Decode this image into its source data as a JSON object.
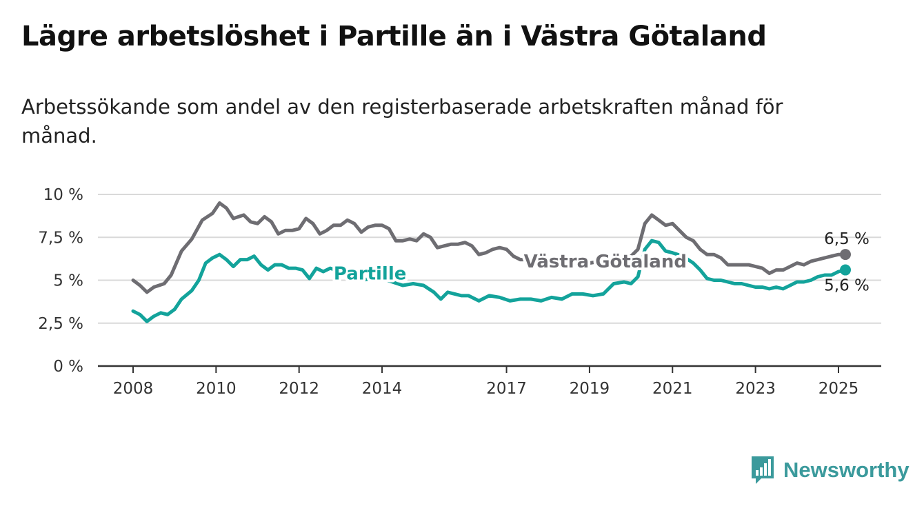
{
  "header": {
    "title": "Lägre arbetslöshet i Partille än i Västra Götaland",
    "subtitle": "Arbetssökande som andel av den registerbaserade arbetskraften månad för månad."
  },
  "brand": {
    "name": "Newsworthy",
    "icon": "newsworthy-logo-icon",
    "color": "#3b9a9c"
  },
  "chart_data": {
    "type": "line",
    "title": "Lägre arbetslöshet i Partille än i Västra Götaland",
    "subtitle": "Arbetssökande som andel av den registerbaserade arbetskraften månad för månad.",
    "xlabel": "",
    "ylabel": "",
    "x_ticks": [
      "2008",
      "2010",
      "2012",
      "2014",
      "2017",
      "2019",
      "2021",
      "2023",
      "2025"
    ],
    "y_ticks": [
      "0 %",
      "2,5 %",
      "5 %",
      "7,5 %",
      "10 %"
    ],
    "xlim": [
      "2008-01",
      "2025-03"
    ],
    "ylim": [
      0,
      10
    ],
    "grid": "horizontal",
    "legend": "inline labels",
    "series": [
      {
        "name": "Västra Götaland",
        "color": "#6e6d72",
        "end_label": "6,5 %",
        "points": [
          [
            "2008-01",
            5.0
          ],
          [
            "2008-03",
            4.7
          ],
          [
            "2008-05",
            4.3
          ],
          [
            "2008-07",
            4.6
          ],
          [
            "2008-10",
            4.8
          ],
          [
            "2008-12",
            5.3
          ],
          [
            "2009-03",
            6.7
          ],
          [
            "2009-06",
            7.4
          ],
          [
            "2009-09",
            8.5
          ],
          [
            "2009-12",
            8.9
          ],
          [
            "2010-02",
            9.5
          ],
          [
            "2010-04",
            9.2
          ],
          [
            "2010-06",
            8.6
          ],
          [
            "2010-09",
            8.8
          ],
          [
            "2010-11",
            8.4
          ],
          [
            "2011-01",
            8.3
          ],
          [
            "2011-03",
            8.7
          ],
          [
            "2011-05",
            8.4
          ],
          [
            "2011-07",
            7.7
          ],
          [
            "2011-09",
            7.9
          ],
          [
            "2011-11",
            7.9
          ],
          [
            "2012-01",
            8.0
          ],
          [
            "2012-03",
            8.6
          ],
          [
            "2012-05",
            8.3
          ],
          [
            "2012-07",
            7.7
          ],
          [
            "2012-09",
            7.9
          ],
          [
            "2012-11",
            8.2
          ],
          [
            "2013-01",
            8.2
          ],
          [
            "2013-03",
            8.5
          ],
          [
            "2013-05",
            8.3
          ],
          [
            "2013-07",
            7.8
          ],
          [
            "2013-09",
            8.1
          ],
          [
            "2013-11",
            8.2
          ],
          [
            "2014-01",
            8.2
          ],
          [
            "2014-03",
            8.0
          ],
          [
            "2014-05",
            7.3
          ],
          [
            "2014-07",
            7.3
          ],
          [
            "2014-09",
            7.4
          ],
          [
            "2014-11",
            7.3
          ],
          [
            "2015-01",
            7.7
          ],
          [
            "2015-03",
            7.5
          ],
          [
            "2015-05",
            6.9
          ],
          [
            "2015-07",
            7.0
          ],
          [
            "2015-09",
            7.1
          ],
          [
            "2015-11",
            7.1
          ],
          [
            "2016-01",
            7.2
          ],
          [
            "2016-03",
            7.0
          ],
          [
            "2016-05",
            6.5
          ],
          [
            "2016-07",
            6.6
          ],
          [
            "2016-09",
            6.8
          ],
          [
            "2016-11",
            6.9
          ],
          [
            "2017-01",
            6.8
          ],
          [
            "2017-03",
            6.4
          ],
          [
            "2017-05",
            6.2
          ],
          [
            "2017-07",
            6.2
          ],
          [
            "2017-09",
            6.1
          ],
          [
            "2017-11",
            6.0
          ],
          [
            "2018-01",
            6.0
          ],
          [
            "2018-04",
            5.9
          ],
          [
            "2018-07",
            5.9
          ],
          [
            "2018-10",
            6.0
          ],
          [
            "2019-01",
            6.0
          ],
          [
            "2019-04",
            6.1
          ],
          [
            "2019-07",
            6.2
          ],
          [
            "2019-10",
            6.3
          ],
          [
            "2020-01",
            6.4
          ],
          [
            "2020-03",
            6.8
          ],
          [
            "2020-05",
            8.3
          ],
          [
            "2020-07",
            8.8
          ],
          [
            "2020-09",
            8.5
          ],
          [
            "2020-11",
            8.2
          ],
          [
            "2021-01",
            8.3
          ],
          [
            "2021-03",
            7.9
          ],
          [
            "2021-05",
            7.5
          ],
          [
            "2021-07",
            7.3
          ],
          [
            "2021-09",
            6.8
          ],
          [
            "2021-11",
            6.5
          ],
          [
            "2022-01",
            6.5
          ],
          [
            "2022-03",
            6.3
          ],
          [
            "2022-05",
            5.9
          ],
          [
            "2022-07",
            5.9
          ],
          [
            "2022-09",
            5.9
          ],
          [
            "2022-11",
            5.9
          ],
          [
            "2023-01",
            5.8
          ],
          [
            "2023-03",
            5.7
          ],
          [
            "2023-05",
            5.4
          ],
          [
            "2023-07",
            5.6
          ],
          [
            "2023-09",
            5.6
          ],
          [
            "2023-11",
            5.8
          ],
          [
            "2024-01",
            6.0
          ],
          [
            "2024-03",
            5.9
          ],
          [
            "2024-05",
            6.1
          ],
          [
            "2024-07",
            6.2
          ],
          [
            "2024-09",
            6.3
          ],
          [
            "2024-11",
            6.4
          ],
          [
            "2025-01",
            6.5
          ],
          [
            "2025-03",
            6.5
          ]
        ]
      },
      {
        "name": "Partille",
        "color": "#13a39b",
        "end_label": "5,6 %",
        "points": [
          [
            "2008-01",
            3.2
          ],
          [
            "2008-03",
            3.0
          ],
          [
            "2008-05",
            2.6
          ],
          [
            "2008-07",
            2.9
          ],
          [
            "2008-09",
            3.1
          ],
          [
            "2008-11",
            3.0
          ],
          [
            "2009-01",
            3.3
          ],
          [
            "2009-03",
            3.9
          ],
          [
            "2009-06",
            4.4
          ],
          [
            "2009-08",
            5.0
          ],
          [
            "2009-10",
            6.0
          ],
          [
            "2009-12",
            6.3
          ],
          [
            "2010-02",
            6.5
          ],
          [
            "2010-04",
            6.2
          ],
          [
            "2010-06",
            5.8
          ],
          [
            "2010-08",
            6.2
          ],
          [
            "2010-10",
            6.2
          ],
          [
            "2010-12",
            6.4
          ],
          [
            "2011-02",
            5.9
          ],
          [
            "2011-04",
            5.6
          ],
          [
            "2011-06",
            5.9
          ],
          [
            "2011-08",
            5.9
          ],
          [
            "2011-10",
            5.7
          ],
          [
            "2011-12",
            5.7
          ],
          [
            "2012-02",
            5.6
          ],
          [
            "2012-04",
            5.1
          ],
          [
            "2012-06",
            5.7
          ],
          [
            "2012-08",
            5.5
          ],
          [
            "2012-10",
            5.7
          ],
          [
            "2013-01",
            5.5
          ],
          [
            "2013-04",
            5.3
          ],
          [
            "2013-07",
            5.0
          ],
          [
            "2013-10",
            5.1
          ],
          [
            "2014-01",
            5.1
          ],
          [
            "2014-04",
            4.9
          ],
          [
            "2014-07",
            4.7
          ],
          [
            "2014-10",
            4.8
          ],
          [
            "2015-01",
            4.7
          ],
          [
            "2015-04",
            4.3
          ],
          [
            "2015-06",
            3.9
          ],
          [
            "2015-08",
            4.3
          ],
          [
            "2015-10",
            4.2
          ],
          [
            "2015-12",
            4.1
          ],
          [
            "2016-02",
            4.1
          ],
          [
            "2016-05",
            3.8
          ],
          [
            "2016-08",
            4.1
          ],
          [
            "2016-11",
            4.0
          ],
          [
            "2017-02",
            3.8
          ],
          [
            "2017-05",
            3.9
          ],
          [
            "2017-08",
            3.9
          ],
          [
            "2017-11",
            3.8
          ],
          [
            "2018-02",
            4.0
          ],
          [
            "2018-05",
            3.9
          ],
          [
            "2018-08",
            4.2
          ],
          [
            "2018-11",
            4.2
          ],
          [
            "2019-02",
            4.1
          ],
          [
            "2019-05",
            4.2
          ],
          [
            "2019-08",
            4.8
          ],
          [
            "2019-11",
            4.9
          ],
          [
            "2020-01",
            4.8
          ],
          [
            "2020-03",
            5.2
          ],
          [
            "2020-05",
            6.8
          ],
          [
            "2020-07",
            7.3
          ],
          [
            "2020-09",
            7.2
          ],
          [
            "2020-11",
            6.7
          ],
          [
            "2021-01",
            6.6
          ],
          [
            "2021-04",
            6.4
          ],
          [
            "2021-07",
            6.0
          ],
          [
            "2021-09",
            5.6
          ],
          [
            "2021-11",
            5.1
          ],
          [
            "2022-01",
            5.0
          ],
          [
            "2022-03",
            5.0
          ],
          [
            "2022-05",
            4.9
          ],
          [
            "2022-07",
            4.8
          ],
          [
            "2022-09",
            4.8
          ],
          [
            "2022-11",
            4.7
          ],
          [
            "2023-01",
            4.6
          ],
          [
            "2023-03",
            4.6
          ],
          [
            "2023-05",
            4.5
          ],
          [
            "2023-07",
            4.6
          ],
          [
            "2023-09",
            4.5
          ],
          [
            "2023-11",
            4.7
          ],
          [
            "2024-01",
            4.9
          ],
          [
            "2024-03",
            4.9
          ],
          [
            "2024-05",
            5.0
          ],
          [
            "2024-07",
            5.2
          ],
          [
            "2024-09",
            5.3
          ],
          [
            "2024-11",
            5.3
          ],
          [
            "2025-01",
            5.5
          ],
          [
            "2025-03",
            5.6
          ]
        ]
      }
    ]
  }
}
